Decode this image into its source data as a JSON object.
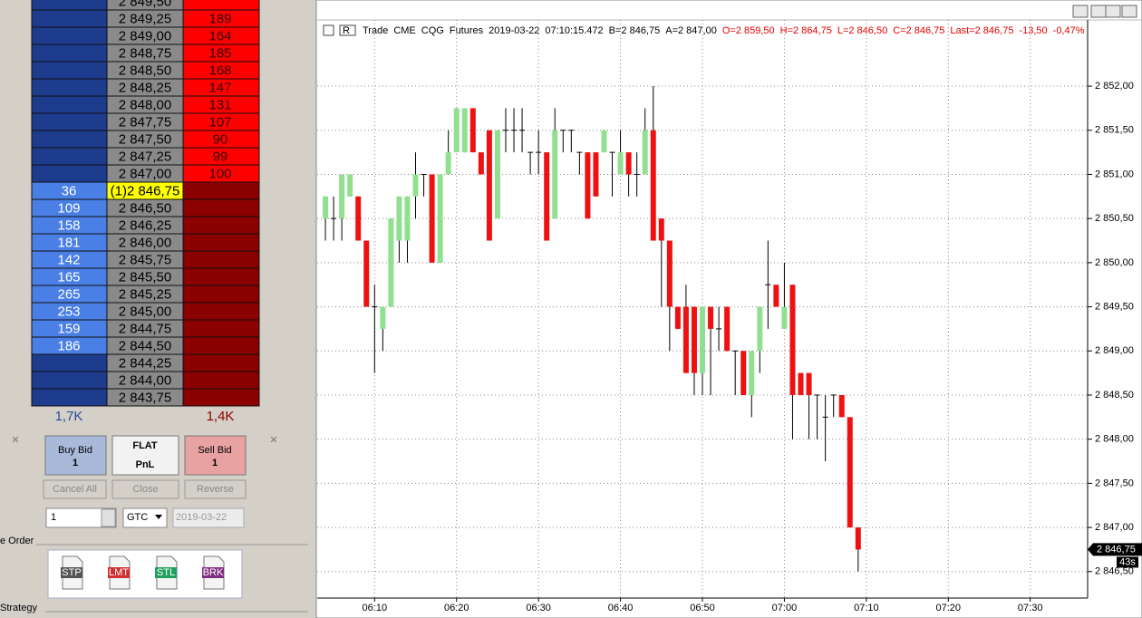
{
  "dom": {
    "rows": [
      {
        "price": "2 849,50"
      },
      {
        "price": "2 849,25",
        "ask": "189"
      },
      {
        "price": "2 849,00",
        "ask": "164"
      },
      {
        "price": "2 848,75",
        "ask": "185"
      },
      {
        "price": "2 848,50",
        "ask": "168"
      },
      {
        "price": "2 848,25",
        "ask": "147"
      },
      {
        "price": "2 848,00",
        "ask": "131"
      },
      {
        "price": "2 847,75",
        "ask": "107"
      },
      {
        "price": "2 847,50",
        "ask": "90"
      },
      {
        "price": "2 847,25",
        "ask": "99"
      },
      {
        "price": "2 847,00",
        "ask": "100"
      },
      {
        "price": "(1)2 846,75",
        "bid": "36"
      },
      {
        "price": "2 846,50",
        "bid": "109"
      },
      {
        "price": "2 846,25",
        "bid": "158"
      },
      {
        "price": "2 846,00",
        "bid": "181"
      },
      {
        "price": "2 845,75",
        "bid": "142"
      },
      {
        "price": "2 845,50",
        "bid": "165"
      },
      {
        "price": "2 845,25",
        "bid": "265"
      },
      {
        "price": "2 845,00",
        "bid": "253"
      },
      {
        "price": "2 844,75",
        "bid": "159"
      },
      {
        "price": "2 844,50",
        "bid": "186"
      },
      {
        "price": "2 844,25"
      },
      {
        "price": "2 844,00"
      },
      {
        "price": "2 843,75"
      }
    ],
    "bid_total": "1,7K",
    "ask_total": "1,4K"
  },
  "order_panel": {
    "buy": {
      "label": "Buy Bid",
      "qty": "1"
    },
    "flat": {
      "label": "FLAT",
      "pnl": "PnL"
    },
    "sell": {
      "label": "Sell Bid",
      "qty": "1"
    },
    "buttons": [
      "Cancel All",
      "Close",
      "Reverse"
    ],
    "quantity": "1",
    "duration": "GTC",
    "date": "2019-03-22",
    "section_order": "e Order",
    "order_types": [
      "STP",
      "LMT",
      "STL",
      "BRK"
    ],
    "section_strategy": "Strategy"
  },
  "chart_data": {
    "type": "candlestick",
    "header_info": [
      "Trade",
      "CME",
      "CQG",
      "Futures",
      "2019-03-22",
      "07:10:15.472",
      "B=2 846,75",
      "A=2 847,00"
    ],
    "header_quote": [
      "O=2 859,50",
      "H=2 864,75",
      "L=2 846,50",
      "C=2 846,75",
      "Last=2 846,75",
      "-13,50",
      "-0,47%"
    ],
    "header_quote_color": "#e00000",
    "up_color": "#90e090",
    "down_color": "#ee1111",
    "grid": true,
    "x": [
      "06:04",
      "06:05",
      "06:06",
      "06:07",
      "06:08",
      "06:09",
      "06:10",
      "06:11",
      "06:12",
      "06:13",
      "06:14",
      "06:15",
      "06:16",
      "06:17",
      "06:18",
      "06:19",
      "06:20",
      "06:21",
      "06:22",
      "06:23",
      "06:24",
      "06:25",
      "06:26",
      "06:27",
      "06:28",
      "06:29",
      "06:30",
      "06:31",
      "06:32",
      "06:33",
      "06:34",
      "06:35",
      "06:36",
      "06:37",
      "06:38",
      "06:39",
      "06:40",
      "06:41",
      "06:42",
      "06:43",
      "06:44",
      "06:45",
      "06:46",
      "06:47",
      "06:48",
      "06:49",
      "06:50",
      "06:51",
      "06:52",
      "06:53",
      "06:54",
      "06:55",
      "06:56",
      "06:57",
      "06:58",
      "06:59",
      "07:00",
      "07:01",
      "07:02",
      "07:03",
      "07:04",
      "07:05",
      "07:06",
      "07:07",
      "07:08",
      "07:09"
    ],
    "open": [
      2850.5,
      2850.5,
      2850.5,
      2850.75,
      2850.75,
      2850.25,
      2849.5,
      2849.25,
      2849.5,
      2850.25,
      2850.25,
      2850.75,
      2851,
      2851,
      2850,
      2851,
      2851.25,
      2851.25,
      2851.75,
      2851.25,
      2851.5,
      2850.5,
      2851.5,
      2851.5,
      2851.5,
      2851.25,
      2851.25,
      2851.25,
      2850.5,
      2851.5,
      2851.5,
      2851.25,
      2851.25,
      2851.25,
      2851.25,
      2851.25,
      2851,
      2851.25,
      2851,
      2851,
      2851.5,
      2850.5,
      2850.25,
      2849.5,
      2849.5,
      2849.5,
      2848.75,
      2849.5,
      2849.25,
      2849.5,
      2849,
      2849,
      2848.5,
      2849,
      2849.75,
      2849.75,
      2849.25,
      2849.75,
      2848.75,
      2848.75,
      2848.5,
      2848.25,
      2848.5,
      2848.5,
      2848.25,
      2847
    ],
    "high": [
      2850.75,
      2850.75,
      2851,
      2851,
      2850.75,
      2850.25,
      2849.75,
      2849.5,
      2850.5,
      2850.75,
      2850.75,
      2851.25,
      2851,
      2851,
      2851,
      2851.5,
      2851.75,
      2851.75,
      2851.75,
      2851.25,
      2851.5,
      2851.5,
      2851.75,
      2851.75,
      2851.75,
      2851.25,
      2851.5,
      2851.25,
      2851.75,
      2851.5,
      2851.5,
      2851.25,
      2851.25,
      2851.25,
      2851.5,
      2851.25,
      2851.5,
      2851.25,
      2851.25,
      2851.75,
      2852,
      2850.5,
      2850.25,
      2849.5,
      2849.75,
      2849.5,
      2849.5,
      2849.5,
      2849.5,
      2849.5,
      2849,
      2849,
      2849,
      2849.5,
      2850.25,
      2849.75,
      2850,
      2849.75,
      2848.75,
      2848.75,
      2848.5,
      2848.5,
      2848.5,
      2848.5,
      2848.25,
      2847
    ],
    "low": [
      2850.25,
      2850.25,
      2850.25,
      2850.75,
      2850.25,
      2849.5,
      2848.75,
      2849,
      2849.5,
      2850,
      2850,
      2850.5,
      2850.75,
      2850,
      2850,
      2851,
      2851.25,
      2851.25,
      2851.25,
      2851,
      2850.25,
      2850.5,
      2851.25,
      2851.25,
      2851.25,
      2851,
      2851,
      2850.25,
      2850.5,
      2851.25,
      2851.25,
      2851,
      2850.5,
      2850.75,
      2851.25,
      2850.75,
      2851,
      2850.75,
      2850.75,
      2851,
      2850.25,
      2849.5,
      2849,
      2849.25,
      2848.75,
      2848.5,
      2848.5,
      2848.5,
      2849,
      2849,
      2848.5,
      2848.5,
      2848.25,
      2848.75,
      2849.25,
      2849.5,
      2849.25,
      2848,
      2848.5,
      2848,
      2848,
      2847.75,
      2848.25,
      2848.25,
      2847,
      2846.5
    ],
    "close": [
      2850.75,
      2850.5,
      2851,
      2851,
      2850.25,
      2849.5,
      2849.5,
      2849.5,
      2850.5,
      2850.75,
      2850.75,
      2851,
      2851,
      2850,
      2851,
      2851.25,
      2851.75,
      2851.75,
      2851.25,
      2851,
      2850.25,
      2851.5,
      2851.5,
      2851.5,
      2851.5,
      2851.25,
      2851.25,
      2850.25,
      2851.5,
      2851.5,
      2851.5,
      2851.25,
      2850.5,
      2850.75,
      2851.5,
      2851.25,
      2851.25,
      2851,
      2851,
      2851.5,
      2850.25,
      2850.25,
      2849.5,
      2849.25,
      2848.75,
      2848.75,
      2849.5,
      2849.25,
      2849.25,
      2849,
      2849,
      2848.5,
      2849,
      2849.5,
      2849.75,
      2849.5,
      2849.5,
      2848.5,
      2848.5,
      2848.5,
      2848.5,
      2848.25,
      2848.5,
      2848.25,
      2847,
      2846.75
    ],
    "xlim": [
      "06:03",
      "07:37"
    ],
    "xticks": [
      "06:10",
      "06:20",
      "06:30",
      "06:40",
      "06:50",
      "07:00",
      "07:10",
      "07:20",
      "07:30"
    ],
    "ylim": [
      2846.2,
      2852.75
    ],
    "yticks": [
      {
        "value": 2852,
        "label": "2 852,00"
      },
      {
        "value": 2851.5,
        "label": "2 851,50"
      },
      {
        "value": 2851,
        "label": "2 851,00"
      },
      {
        "value": 2850.5,
        "label": "2 850,50"
      },
      {
        "value": 2850,
        "label": "2 850,00"
      },
      {
        "value": 2849.5,
        "label": "2 849,50"
      },
      {
        "value": 2849,
        "label": "2 849,00"
      },
      {
        "value": 2848.5,
        "label": "2 848,50"
      },
      {
        "value": 2848,
        "label": "2 848,00"
      },
      {
        "value": 2847.5,
        "label": "2 847,50"
      },
      {
        "value": 2847,
        "label": "2 847,00"
      },
      {
        "value": 2846.5,
        "label": "2 846,50"
      }
    ],
    "last": {
      "value": 2846.75,
      "label": "2 846,75"
    },
    "timer": "43s"
  }
}
